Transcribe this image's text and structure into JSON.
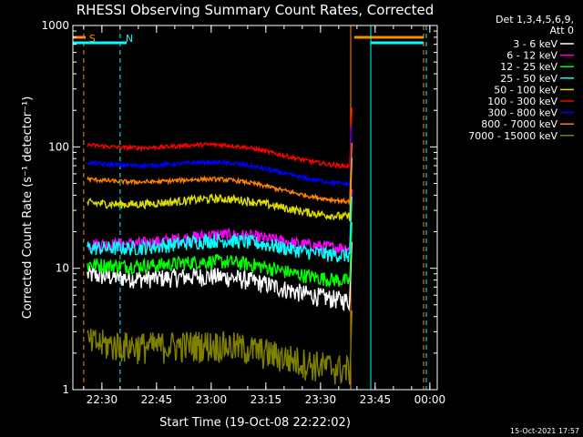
{
  "chart_data": {
    "type": "line",
    "title": "RHESSI Observing Summary Count Rates, Corrected",
    "xlabel": "Start Time (19-Oct-08 22:22:02)",
    "ylabel": "Corrected Count Rate (s⁻¹ detector⁻¹)",
    "yscale": "log",
    "ylim": [
      1,
      1000
    ],
    "xlim": [
      "22:22:02",
      "00:02:02"
    ],
    "x_tick_labels": [
      "22:30",
      "22:45",
      "23:00",
      "23:15",
      "23:30",
      "23:45",
      "00:00"
    ],
    "y_tick_labels": [
      "1",
      "10",
      "100",
      "1000"
    ],
    "legend_header": [
      "Det 1,3,4,5,6,9,",
      "Att 0"
    ],
    "footer_date": "15-Oct-2021 17:57",
    "markers": [
      {
        "label": "S",
        "color": "#ff8c00",
        "time": "22:25"
      },
      {
        "label": "N",
        "color": "#00ffff",
        "time": "22:35"
      }
    ],
    "series": [
      {
        "name": "3 - 6 keV",
        "color": "#ffffff",
        "start_value": 9,
        "end_value": 5.5
      },
      {
        "name": "6 - 12 keV",
        "color": "#ff00ff",
        "start_value": 16,
        "end_value": 15
      },
      {
        "name": "12 - 25 keV",
        "color": "#00ff00",
        "start_value": 11,
        "end_value": 8
      },
      {
        "name": "25 - 50 keV",
        "color": "#00ffff",
        "start_value": 15,
        "end_value": 13
      },
      {
        "name": "50 - 100 keV",
        "color": "#dddd00",
        "start_value": 35,
        "end_value": 27
      },
      {
        "name": "100 - 300 keV",
        "color": "#ff0000",
        "start_value": 105,
        "end_value": 70
      },
      {
        "name": "300 - 800 keV",
        "color": "#0000ff",
        "start_value": 75,
        "end_value": 50
      },
      {
        "name": "800 - 7000 keV",
        "color": "#ff8000",
        "start_value": 55,
        "end_value": 36
      },
      {
        "name": "7000 - 15000 keV",
        "color": "#808000",
        "start_value": 2.5,
        "end_value": 1.5
      }
    ]
  }
}
